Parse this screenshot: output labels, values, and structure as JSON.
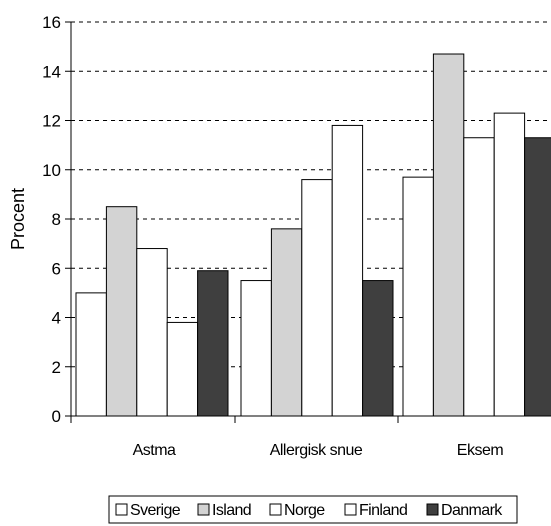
{
  "chart_data": {
    "type": "bar",
    "categories": [
      "Astma",
      "Allergisk snue",
      "Eksem"
    ],
    "series": [
      {
        "name": "Sverige",
        "values": [
          5.0,
          5.5,
          9.7
        ],
        "color": "#ffffff"
      },
      {
        "name": "Island",
        "values": [
          8.5,
          7.6,
          14.7
        ],
        "color": "#d3d3d3"
      },
      {
        "name": "Norge",
        "values": [
          6.8,
          9.6,
          11.3
        ],
        "color": "#ffffff"
      },
      {
        "name": "Finland",
        "values": [
          3.8,
          11.8,
          12.3
        ],
        "color": "#ffffff"
      },
      {
        "name": "Danmark",
        "values": [
          5.9,
          5.5,
          11.3
        ],
        "color": "#3f3f3f"
      }
    ],
    "title": "",
    "xlabel": "",
    "ylabel": "Procent",
    "ylim": [
      0,
      16
    ],
    "yticks": [
      0,
      2,
      4,
      6,
      8,
      10,
      12,
      14,
      16
    ],
    "grid": "dashed horizontal",
    "legend": "bottom"
  }
}
